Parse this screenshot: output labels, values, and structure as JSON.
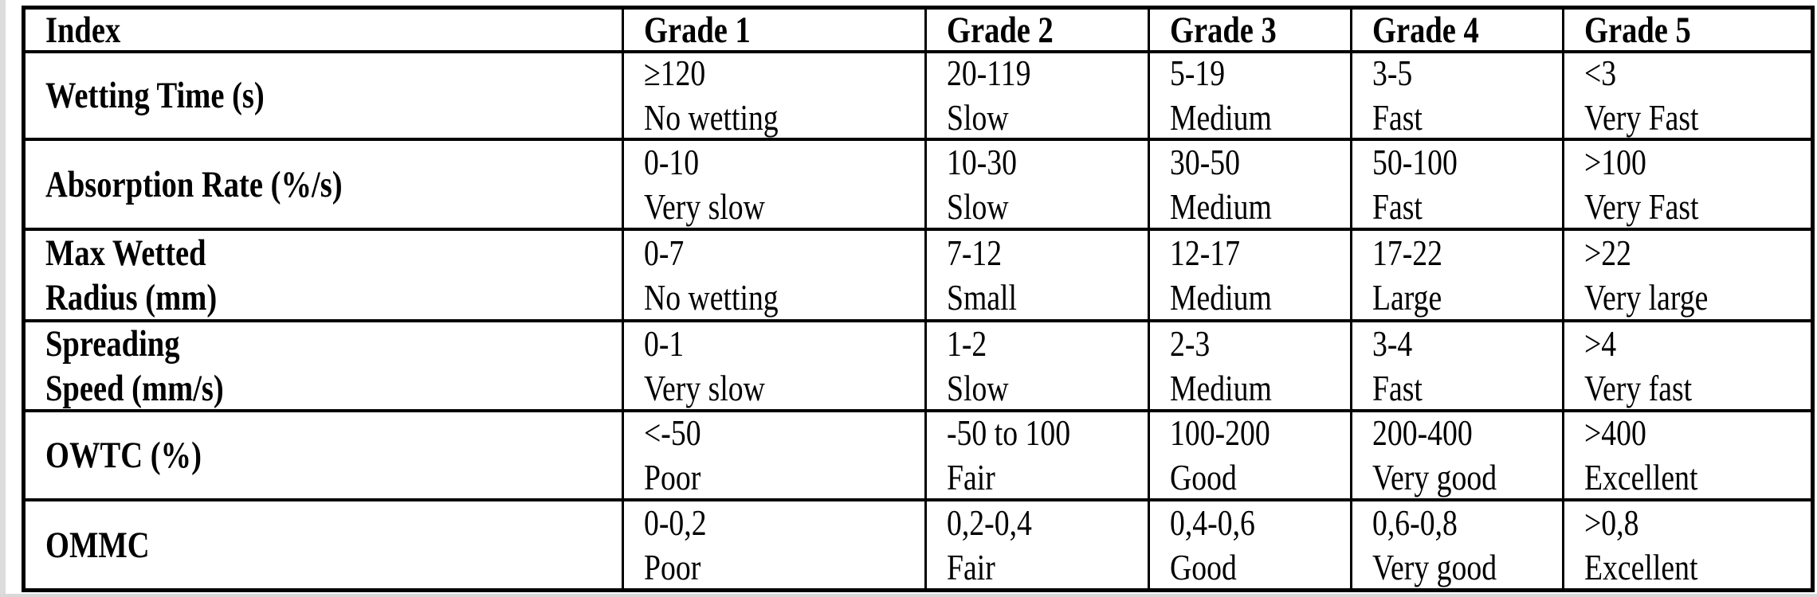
{
  "table": {
    "columns": [
      "Index",
      "Grade 1",
      "Grade 2",
      "Grade 3",
      "Grade 4",
      "Grade 5"
    ],
    "rows": [
      {
        "index": [
          "Wetting Time (s)",
          ""
        ],
        "cells": [
          {
            "value": "≥120",
            "label": "No wetting"
          },
          {
            "value": "20-119",
            "label": "Slow"
          },
          {
            "value": "5-19",
            "label": "Medium"
          },
          {
            "value": "3-5",
            "label": "Fast"
          },
          {
            "value": "<3",
            "label": "Very Fast"
          }
        ]
      },
      {
        "index": [
          "Absorption Rate (%/s)",
          ""
        ],
        "cells": [
          {
            "value": "0-10",
            "label": "Very slow"
          },
          {
            "value": "10-30",
            "label": "Slow"
          },
          {
            "value": "30-50",
            "label": "Medium"
          },
          {
            "value": "50-100",
            "label": "Fast"
          },
          {
            "value": ">100",
            "label": "Very Fast"
          }
        ]
      },
      {
        "index": [
          "Max Wetted",
          "Radius (mm)"
        ],
        "cells": [
          {
            "value": "0-7",
            "label": "No wetting"
          },
          {
            "value": "7-12",
            "label": "Small"
          },
          {
            "value": "12-17",
            "label": "Medium"
          },
          {
            "value": "17-22",
            "label": "Large"
          },
          {
            "value": ">22",
            "label": "Very large"
          }
        ]
      },
      {
        "index": [
          "Spreading",
          "Speed (mm/s)"
        ],
        "cells": [
          {
            "value": "0-1",
            "label": "Very slow"
          },
          {
            "value": "1-2",
            "label": "Slow"
          },
          {
            "value": "2-3",
            "label": "Medium"
          },
          {
            "value": "3-4",
            "label": "Fast"
          },
          {
            "value": ">4",
            "label": "Very fast"
          }
        ]
      },
      {
        "index": [
          "OWTC (%)",
          ""
        ],
        "cells": [
          {
            "value": "<-50",
            "label": "Poor"
          },
          {
            "value": "-50 to 100",
            "label": "Fair"
          },
          {
            "value": "100-200",
            "label": "Good"
          },
          {
            "value": "200-400",
            "label": "Very good"
          },
          {
            "value": ">400",
            "label": "Excellent"
          }
        ]
      },
      {
        "index": [
          "OMMC",
          ""
        ],
        "cells": [
          {
            "value": "0-0,2",
            "label": "Poor"
          },
          {
            "value": "0,2-0,4",
            "label": "Fair"
          },
          {
            "value": "0,4-0,6",
            "label": "Good"
          },
          {
            "value": "0,6-0,8",
            "label": "Very good"
          },
          {
            "value": ">0,8",
            "label": "Excellent"
          }
        ]
      }
    ]
  },
  "colors": {
    "table_border": "#000000",
    "text": "#000000",
    "page_background": "#ffffff"
  }
}
